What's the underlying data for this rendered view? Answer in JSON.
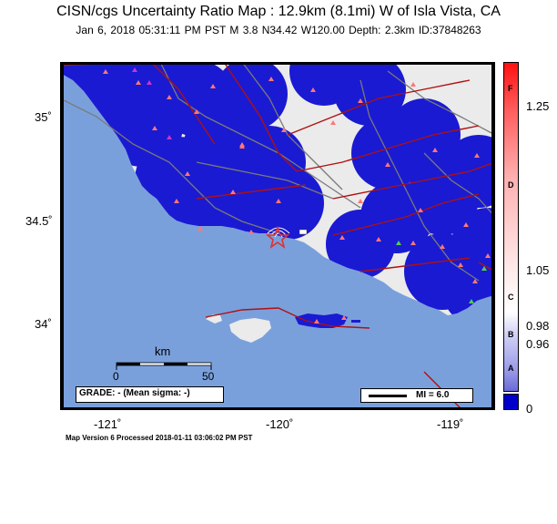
{
  "title": "CISN/cgs Uncertainty Ratio Map : 12.9km (8.1mi) W of Isla Vista, CA",
  "subtitle": "Jan  6, 2018 05:31:11 PM PST   M 3.8   N34.42 W120.00   Depth: 2.3km   ID:37848263",
  "footer": "Map Version 6 Processed 2018-01-11 03:06:02 PM PST",
  "lat_ticks": [
    "35˚",
    "34.5˚",
    "34˚"
  ],
  "lon_ticks": [
    "-121˚",
    "-120˚",
    "-119˚"
  ],
  "scale_bar": {
    "label": "km",
    "min": "0",
    "max": "50"
  },
  "grade_box": "GRADE: - (Mean sigma: -)",
  "mi_legend": "MI = 6.0",
  "colorbar": {
    "values": [
      "1.25",
      "1.05",
      "0.98",
      "0.96",
      "0"
    ],
    "grades": [
      "F",
      "D",
      "C",
      "B",
      "A"
    ]
  },
  "colors": {
    "ocean": "#7aa0dc",
    "land": "#ebebeb",
    "uncertainty_blue": "#1a1ad2",
    "faults": "#b01010",
    "roads": "#7a7a7a",
    "epicenter": "#e03030",
    "station": "#ff7777"
  }
}
